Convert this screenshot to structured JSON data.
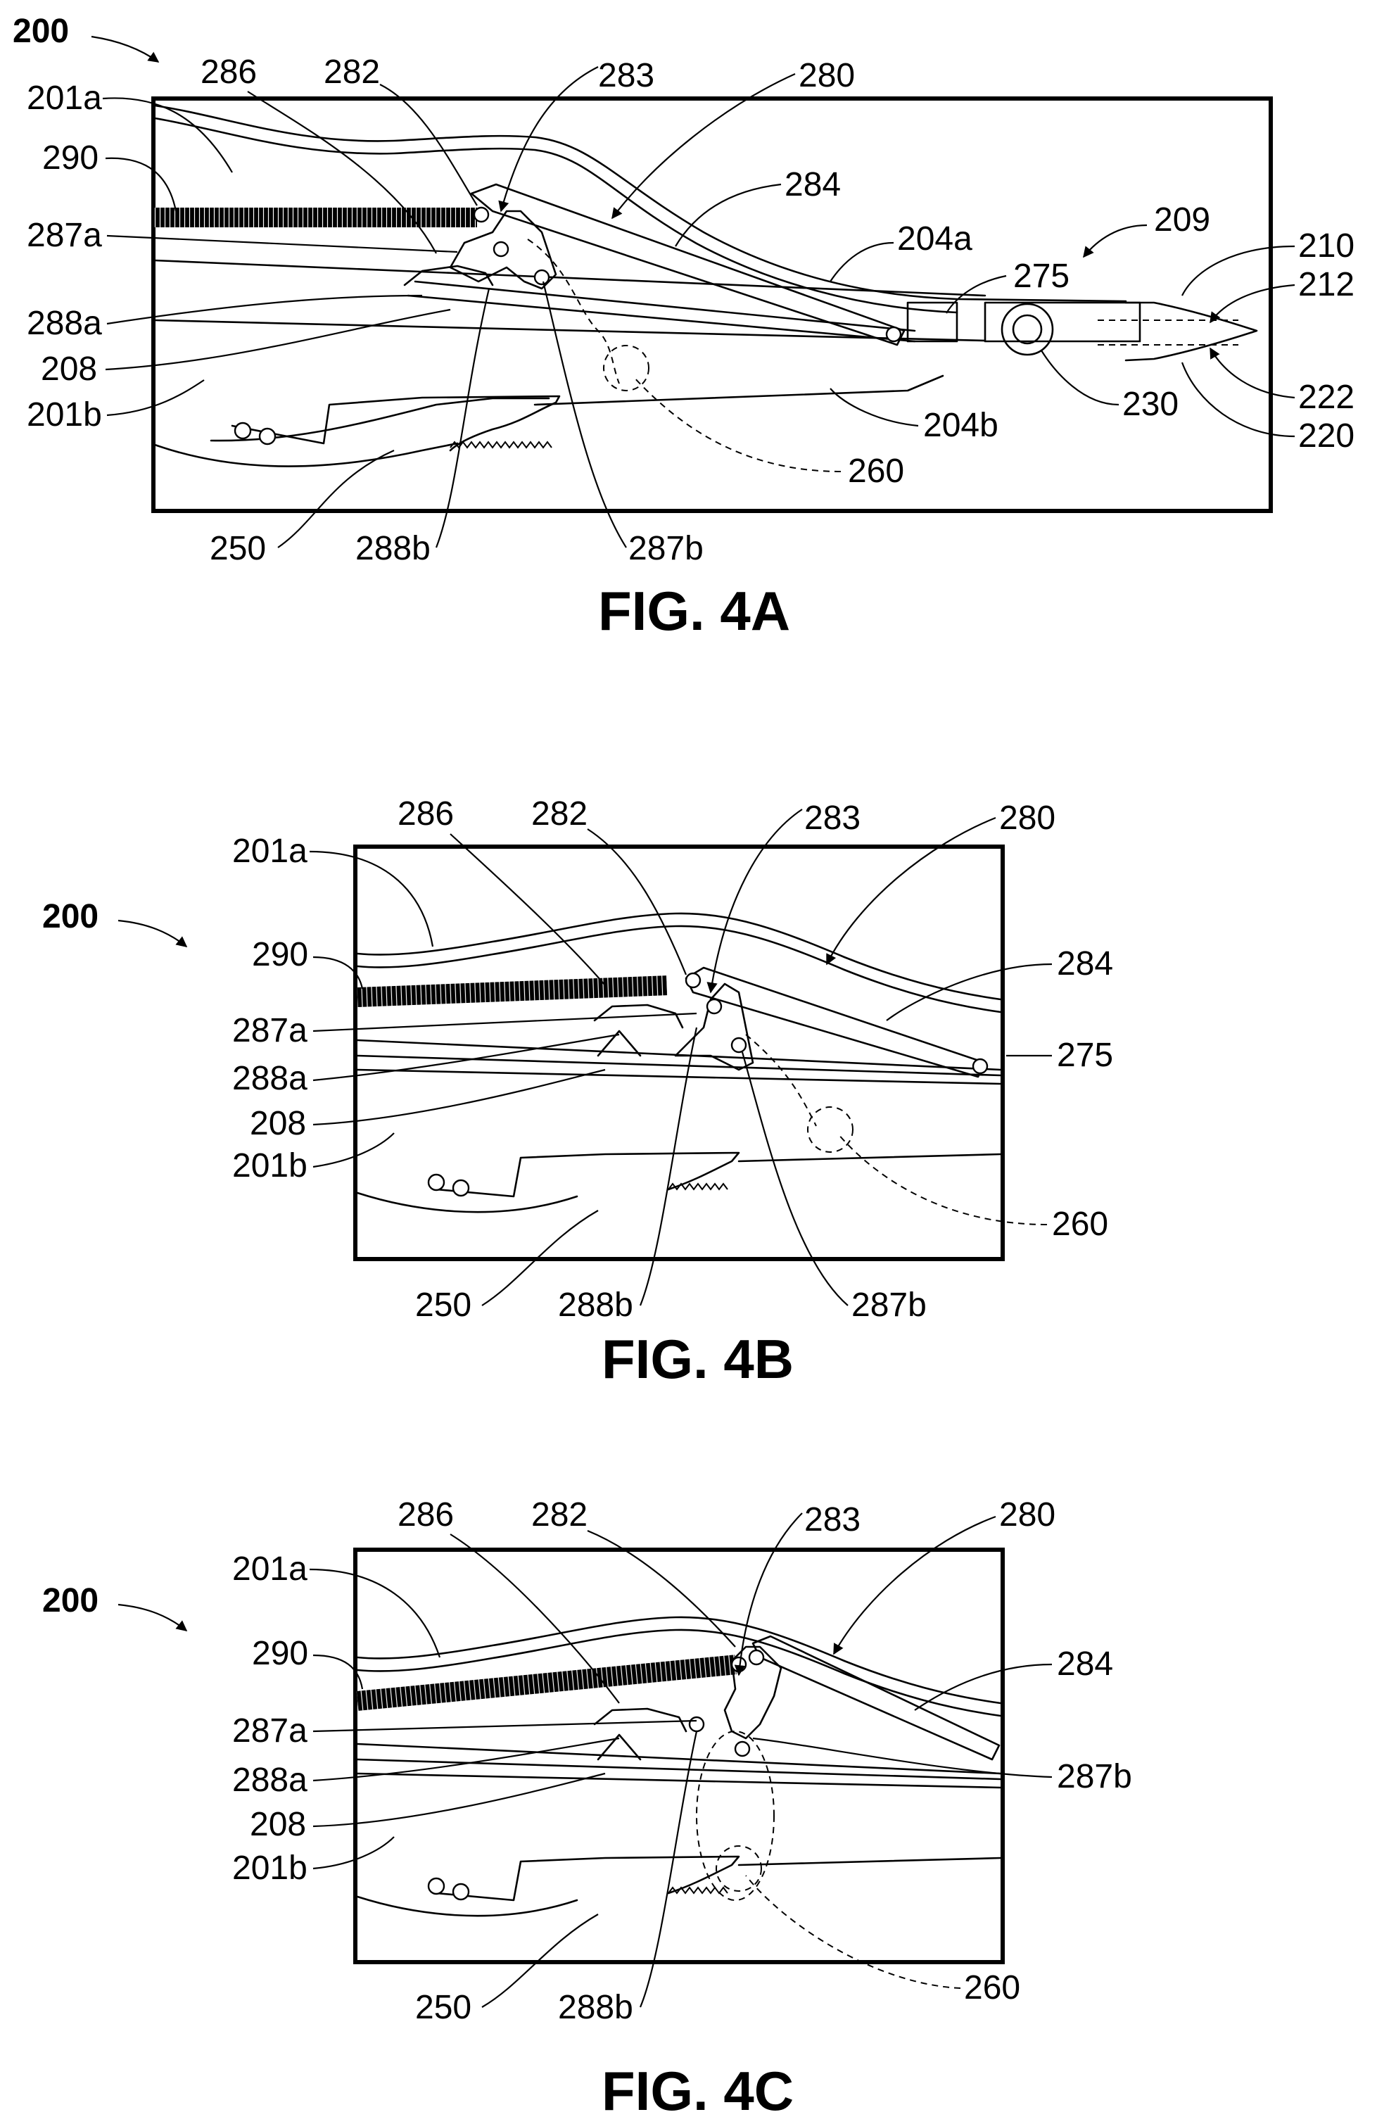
{
  "figures": [
    {
      "caption": "FIG. 4A",
      "labels": {
        "ref": "200",
        "l201a": "201a",
        "l290": "290",
        "l287a": "287a",
        "l288a": "288a",
        "l208": "208",
        "l201b": "201b",
        "l286": "286",
        "l282": "282",
        "l283": "283",
        "l280": "280",
        "l284": "284",
        "l204a": "204a",
        "l209": "209",
        "l275": "275",
        "l210": "210",
        "l212": "212",
        "l222": "222",
        "l220": "220",
        "l230": "230",
        "l204b": "204b",
        "l260": "260",
        "l250": "250",
        "l288b": "288b",
        "l287b": "287b"
      }
    },
    {
      "caption": "FIG. 4B",
      "labels": {
        "ref": "200",
        "l201a": "201a",
        "l290": "290",
        "l287a": "287a",
        "l288a": "288a",
        "l208": "208",
        "l201b": "201b",
        "l286": "286",
        "l282": "282",
        "l283": "283",
        "l280": "280",
        "l284": "284",
        "l275": "275",
        "l260": "260",
        "l250": "250",
        "l288b": "288b",
        "l287b": "287b"
      }
    },
    {
      "caption": "FIG. 4C",
      "labels": {
        "ref": "200",
        "l201a": "201a",
        "l290": "290",
        "l287a": "287a",
        "l288a": "288a",
        "l208": "208",
        "l201b": "201b",
        "l286": "286",
        "l282": "282",
        "l283": "283",
        "l280": "280",
        "l284": "284",
        "l287b": "287b",
        "l260": "260",
        "l250": "250",
        "l288b": "288b"
      }
    }
  ]
}
